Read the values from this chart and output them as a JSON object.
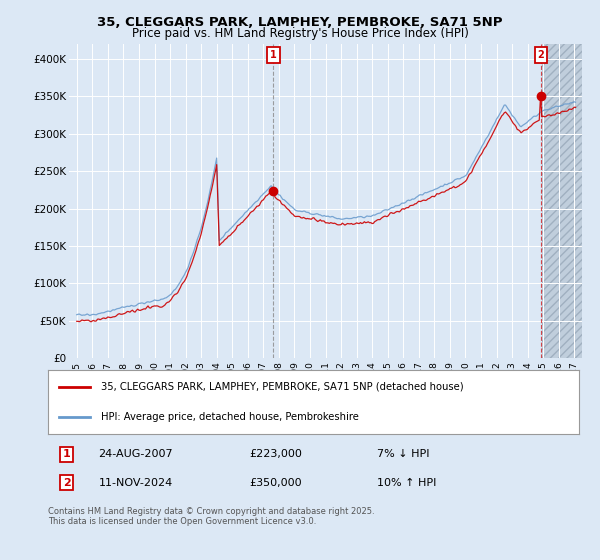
{
  "title_line1": "35, CLEGGARS PARK, LAMPHEY, PEMBROKE, SA71 5NP",
  "title_line2": "Price paid vs. HM Land Registry's House Price Index (HPI)",
  "background_color": "#dce8f5",
  "plot_bg_color": "#dce8f5",
  "future_bg_color": "#c8d8e8",
  "grid_color": "#ffffff",
  "red_color": "#cc0000",
  "blue_color": "#6699cc",
  "marker1_year": 2007.65,
  "marker1_value": 223000,
  "marker2_year": 2024.87,
  "marker2_value": 350000,
  "ylim": [
    0,
    420000
  ],
  "xlim_start": 1994.5,
  "xlim_end": 2027.5,
  "yticks": [
    0,
    50000,
    100000,
    150000,
    200000,
    250000,
    300000,
    350000,
    400000
  ],
  "ytick_labels": [
    "£0",
    "£50K",
    "£100K",
    "£150K",
    "£200K",
    "£250K",
    "£300K",
    "£350K",
    "£400K"
  ],
  "xtick_years": [
    1995,
    1996,
    1997,
    1998,
    1999,
    2000,
    2001,
    2002,
    2003,
    2004,
    2005,
    2006,
    2007,
    2008,
    2009,
    2010,
    2011,
    2012,
    2013,
    2014,
    2015,
    2016,
    2017,
    2018,
    2019,
    2020,
    2021,
    2022,
    2023,
    2024,
    2025,
    2026,
    2027
  ],
  "legend_label_red": "35, CLEGGARS PARK, LAMPHEY, PEMBROKE, SA71 5NP (detached house)",
  "legend_label_blue": "HPI: Average price, detached house, Pembrokeshire",
  "annotation1_label": "1",
  "annotation1_date": "24-AUG-2007",
  "annotation1_price": "£223,000",
  "annotation1_hpi": "7% ↓ HPI",
  "annotation2_label": "2",
  "annotation2_date": "11-NOV-2024",
  "annotation2_price": "£350,000",
  "annotation2_hpi": "10% ↑ HPI",
  "footer": "Contains HM Land Registry data © Crown copyright and database right 2025.\nThis data is licensed under the Open Government Licence v3.0."
}
